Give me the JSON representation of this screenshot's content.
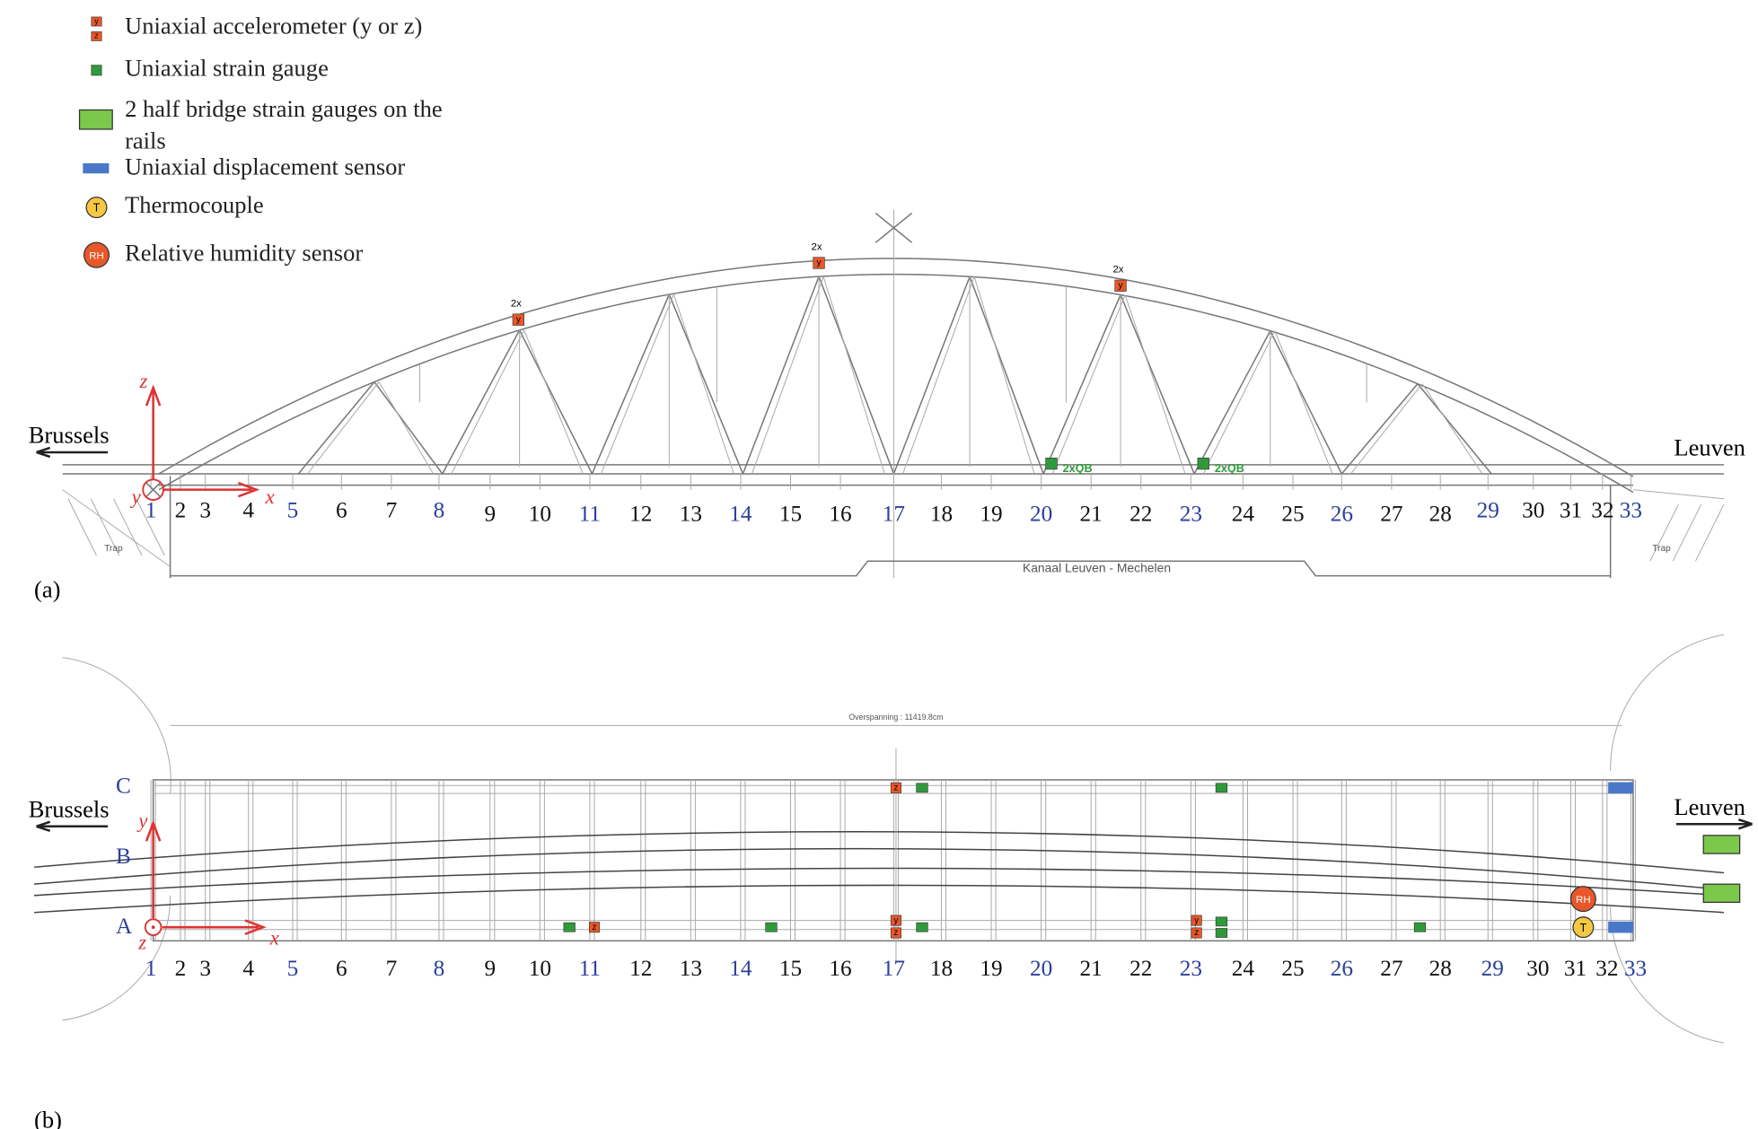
{
  "legend": [
    {
      "icon": [
        "y",
        "z"
      ],
      "label": "Uniaxial accelerometer (y or z)"
    },
    {
      "label": "Uniaxial strain gauge"
    },
    {
      "label": "2 half bridge strain gauges on the rails"
    },
    {
      "label": "Uniaxial displacement sensor"
    },
    {
      "icon": "T",
      "label": "Thermocouple"
    },
    {
      "icon": "RH",
      "label": "Relative humidity sensor"
    }
  ],
  "elevation": {
    "panel": "(a)",
    "left_city": "Brussels",
    "right_city": "Leuven",
    "axes": {
      "z": "z",
      "y": "y",
      "x": "x"
    },
    "nodes": [
      "1",
      "2",
      "3",
      "4",
      "5",
      "6",
      "7",
      "8",
      "9",
      "10",
      "11",
      "12",
      "13",
      "14",
      "15",
      "16",
      "17",
      "18",
      "19",
      "20",
      "21",
      "22",
      "23",
      "24",
      "25",
      "26",
      "27",
      "28",
      "29",
      "30",
      "31",
      "32",
      "33"
    ],
    "accelerometers": [
      {
        "label": "y",
        "count": "2x"
      },
      {
        "label": "y",
        "count": "2x"
      },
      {
        "label": "y",
        "count": "2x"
      }
    ],
    "rail_gauges": [
      "2xQB",
      "2xQB"
    ],
    "canal": "Kanaal Leuven - Mechelen",
    "stairs": [
      "Trap",
      "Trap"
    ]
  },
  "plan": {
    "panel": "(b)",
    "left_city": "Brussels",
    "right_city": "Leuven",
    "axes": {
      "y": "y",
      "z": "z",
      "x": "x"
    },
    "rows": [
      "C",
      "B",
      "A"
    ],
    "span": "Overspanning : 11419.8cm",
    "nodes": [
      "1",
      "2",
      "3",
      "4",
      "5",
      "6",
      "7",
      "8",
      "9",
      "10",
      "11",
      "12",
      "13",
      "14",
      "15",
      "16",
      "17",
      "18",
      "19",
      "20",
      "21",
      "22",
      "23",
      "24",
      "25",
      "26",
      "27",
      "28",
      "29",
      "30",
      "31",
      "32",
      "33"
    ],
    "accelerometers": [
      "z",
      "z",
      "y",
      "z",
      "y",
      "z"
    ],
    "thermocouple": "T",
    "humidity": "RH"
  }
}
